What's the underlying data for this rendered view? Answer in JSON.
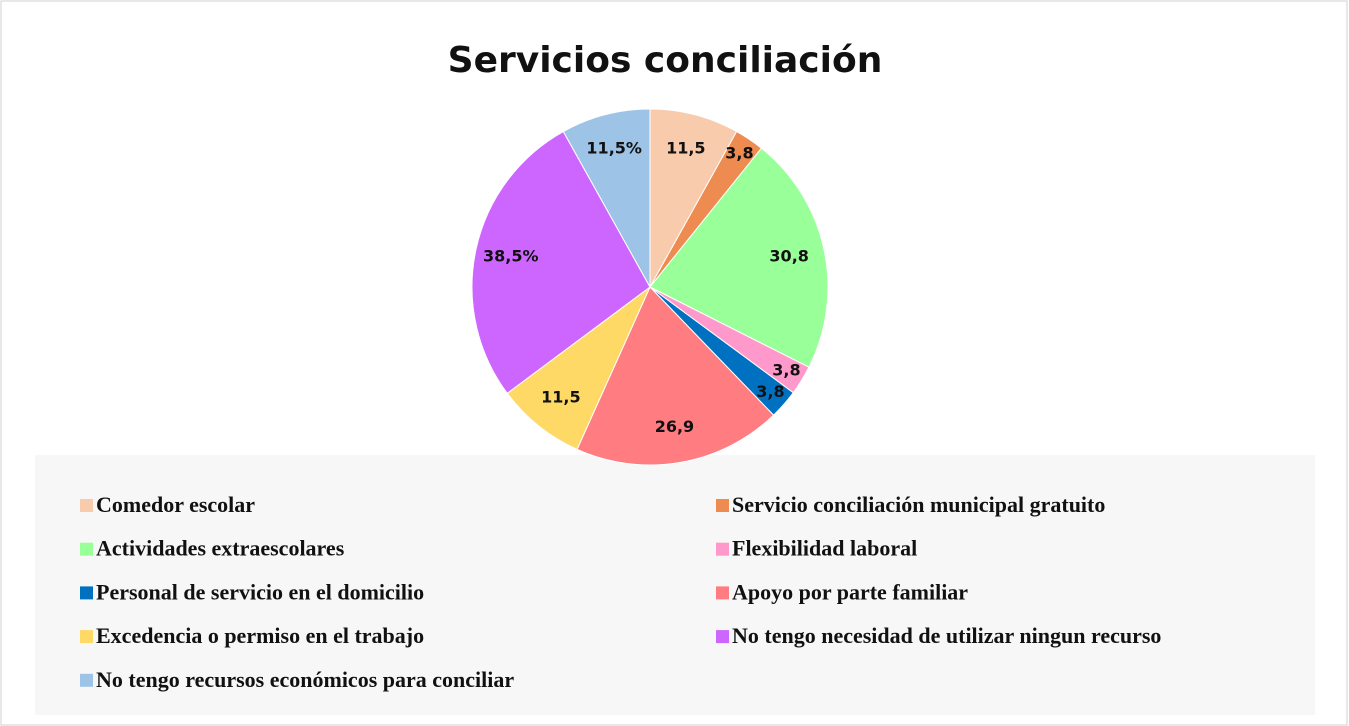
{
  "chart_data": {
    "type": "pie",
    "title": "Servicios conciliación",
    "categories": [
      "Comedor escolar",
      "Servicio conciliación municipal gratuito",
      "Actividades extraescolares",
      "Flexibilidad laboral",
      "Personal de servicio en el domicilio",
      "Apoyo por parte familiar",
      "Excedencia o permiso en el trabajo",
      "No tengo necesidad de utilizar ningun recurso",
      "No tengo recursos económicos para conciliar"
    ],
    "values": [
      11.5,
      3.8,
      30.8,
      3.8,
      3.8,
      26.9,
      11.5,
      38.5,
      11.5
    ],
    "value_labels": [
      "11,5",
      "3,8",
      "30,8",
      "3,8",
      "3,8",
      "26,9",
      "11,5",
      "38,5%",
      "11,5%"
    ],
    "colors": [
      "#f8cbad",
      "#ed8b50",
      "#99ff99",
      "#ff99cc",
      "#0070c0",
      "#ff7c80",
      "#ffd966",
      "#cc66ff",
      "#9dc3e6"
    ],
    "legend": "bottom"
  }
}
